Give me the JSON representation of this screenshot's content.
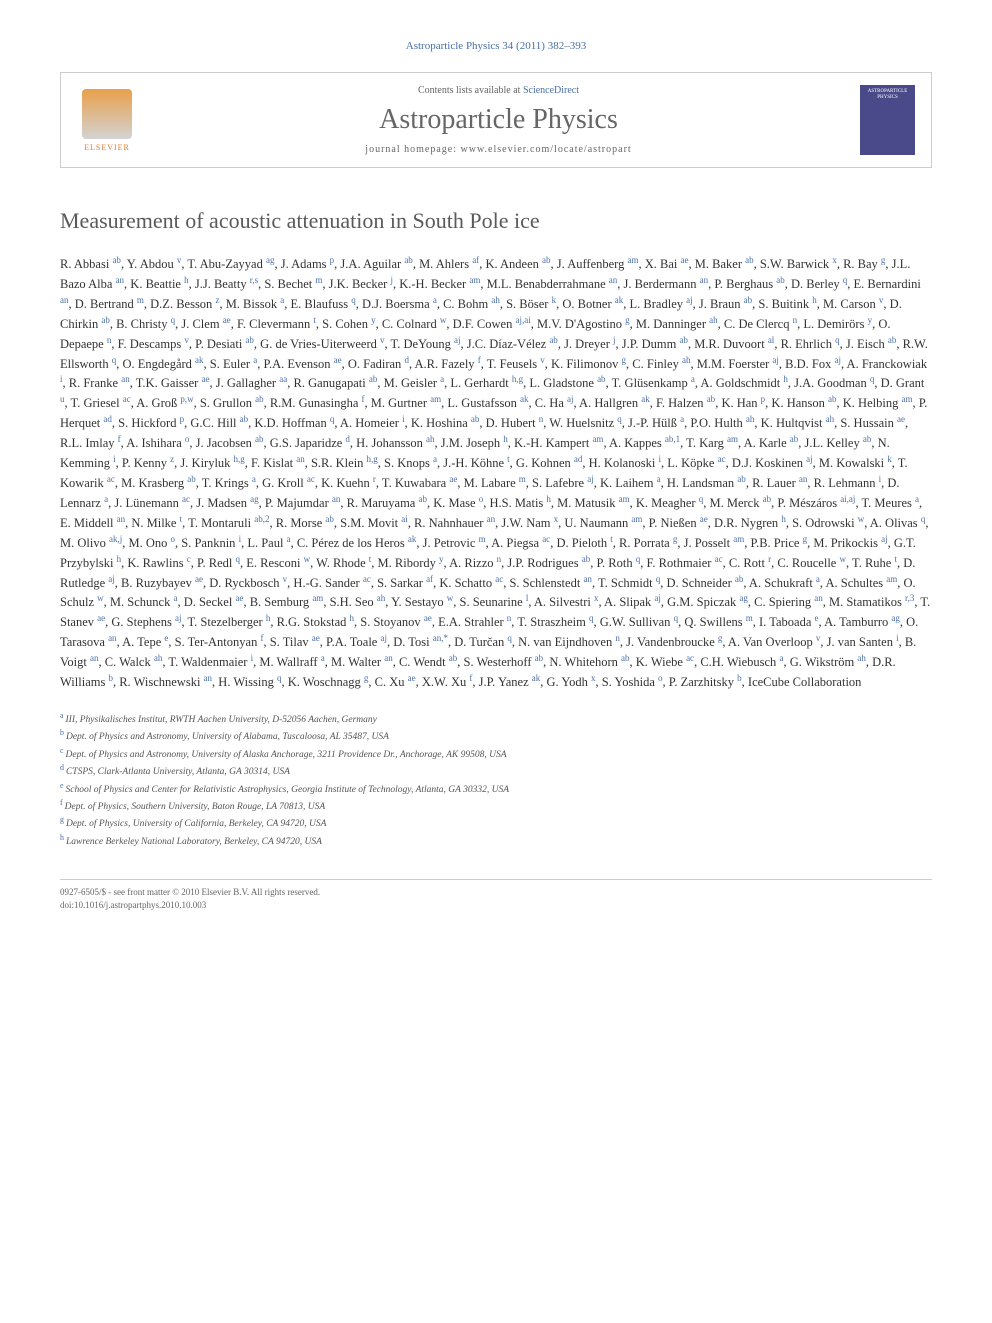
{
  "journal_reference": "Astroparticle Physics 34 (2011) 382–393",
  "header": {
    "contents_text": "Contents lists available at ",
    "contents_link": "ScienceDirect",
    "journal_name": "Astroparticle Physics",
    "homepage_label": "journal homepage: ",
    "homepage_url": "www.elsevier.com/locate/astropart",
    "publisher": "ELSEVIER",
    "cover_label": "ASTROPARTICLE PHYSICS"
  },
  "article_title": "Measurement of acoustic attenuation in South Pole ice",
  "authors_html": "R. Abbasi <sup>ab</sup>, Y. Abdou <sup>v</sup>, T. Abu-Zayyad <sup>ag</sup>, J. Adams <sup>p</sup>, J.A. Aguilar <sup>ab</sup>, M. Ahlers <sup>af</sup>, K. Andeen <sup>ab</sup>, J. Auffenberg <sup>am</sup>, X. Bai <sup>ae</sup>, M. Baker <sup>ab</sup>, S.W. Barwick <sup>x</sup>, R. Bay <sup>g</sup>, J.L. Bazo Alba <sup>an</sup>, K. Beattie <sup>h</sup>, J.J. Beatty <sup>r,s</sup>, S. Bechet <sup>m</sup>, J.K. Becker <sup>j</sup>, K.-H. Becker <sup>am</sup>, M.L. Benabderrahmane <sup>an</sup>, J. Berdermann <sup>an</sup>, P. Berghaus <sup>ab</sup>, D. Berley <sup>q</sup>, E. Bernardini <sup>an</sup>, D. Bertrand <sup>m</sup>, D.Z. Besson <sup>z</sup>, M. Bissok <sup>a</sup>, E. Blaufuss <sup>q</sup>, D.J. Boersma <sup>a</sup>, C. Bohm <sup>ah</sup>, S. Böser <sup>k</sup>, O. Botner <sup>ak</sup>, L. Bradley <sup>aj</sup>, J. Braun <sup>ab</sup>, S. Buitink <sup>h</sup>, M. Carson <sup>v</sup>, D. Chirkin <sup>ab</sup>, B. Christy <sup>q</sup>, J. Clem <sup>ae</sup>, F. Clevermann <sup>t</sup>, S. Cohen <sup>y</sup>, C. Colnard <sup>w</sup>, D.F. Cowen <sup>aj,ai</sup>, M.V. D'Agostino <sup>g</sup>, M. Danninger <sup>ah</sup>, C. De Clercq <sup>n</sup>, L. Demirörs <sup>y</sup>, O. Depaepe <sup>n</sup>, F. Descamps <sup>v</sup>, P. Desiati <sup>ab</sup>, G. de Vries-Uiterweerd <sup>v</sup>, T. DeYoung <sup>aj</sup>, J.C. Díaz-Vélez <sup>ab</sup>, J. Dreyer <sup>j</sup>, J.P. Dumm <sup>ab</sup>, M.R. Duvoort <sup>al</sup>, R. Ehrlich <sup>q</sup>, J. Eisch <sup>ab</sup>, R.W. Ellsworth <sup>q</sup>, O. Engdegård <sup>ak</sup>, S. Euler <sup>a</sup>, P.A. Evenson <sup>ae</sup>, O. Fadiran <sup>d</sup>, A.R. Fazely <sup>f</sup>, T. Feusels <sup>v</sup>, K. Filimonov <sup>g</sup>, C. Finley <sup>ah</sup>, M.M. Foerster <sup>aj</sup>, B.D. Fox <sup>aj</sup>, A. Franckowiak <sup>i</sup>, R. Franke <sup>an</sup>, T.K. Gaisser <sup>ae</sup>, J. Gallagher <sup>aa</sup>, R. Ganugapati <sup>ab</sup>, M. Geisler <sup>a</sup>, L. Gerhardt <sup>h,g</sup>, L. Gladstone <sup>ab</sup>, T. Glüsenkamp <sup>a</sup>, A. Goldschmidt <sup>h</sup>, J.A. Goodman <sup>q</sup>, D. Grant <sup>u</sup>, T. Griesel <sup>ac</sup>, A. Groß <sup>p,w</sup>, S. Grullon <sup>ab</sup>, R.M. Gunasingha <sup>f</sup>, M. Gurtner <sup>am</sup>, L. Gustafsson <sup>ak</sup>, C. Ha <sup>aj</sup>, A. Hallgren <sup>ak</sup>, F. Halzen <sup>ab</sup>, K. Han <sup>p</sup>, K. Hanson <sup>ab</sup>, K. Helbing <sup>am</sup>, P. Herquet <sup>ad</sup>, S. Hickford <sup>p</sup>, G.C. Hill <sup>ab</sup>, K.D. Hoffman <sup>q</sup>, A. Homeier <sup>i</sup>, K. Hoshina <sup>ab</sup>, D. Hubert <sup>n</sup>, W. Huelsnitz <sup>q</sup>, J.-P. Hülß <sup>a</sup>, P.O. Hulth <sup>ah</sup>, K. Hultqvist <sup>ah</sup>, S. Hussain <sup>ae</sup>, R.L. Imlay <sup>f</sup>, A. Ishihara <sup>o</sup>, J. Jacobsen <sup>ab</sup>, G.S. Japaridze <sup>d</sup>, H. Johansson <sup>ah</sup>, J.M. Joseph <sup>h</sup>, K.-H. Kampert <sup>am</sup>, A. Kappes <sup>ab,1</sup>, T. Karg <sup>am</sup>, A. Karle <sup>ab</sup>, J.L. Kelley <sup>ab</sup>, N. Kemming <sup>i</sup>, P. Kenny <sup>z</sup>, J. Kiryluk <sup>h,g</sup>, F. Kislat <sup>an</sup>, S.R. Klein <sup>h,g</sup>, S. Knops <sup>a</sup>, J.-H. Köhne <sup>t</sup>, G. Kohnen <sup>ad</sup>, H. Kolanoski <sup>i</sup>, L. Köpke <sup>ac</sup>, D.J. Koskinen <sup>aj</sup>, M. Kowalski <sup>k</sup>, T. Kowarik <sup>ac</sup>, M. Krasberg <sup>ab</sup>, T. Krings <sup>a</sup>, G. Kroll <sup>ac</sup>, K. Kuehn <sup>r</sup>, T. Kuwabara <sup>ae</sup>, M. Labare <sup>m</sup>, S. Lafebre <sup>aj</sup>, K. Laihem <sup>a</sup>, H. Landsman <sup>ab</sup>, R. Lauer <sup>an</sup>, R. Lehmann <sup>i</sup>, D. Lennarz <sup>a</sup>, J. Lünemann <sup>ac</sup>, J. Madsen <sup>ag</sup>, P. Majumdar <sup>an</sup>, R. Maruyama <sup>ab</sup>, K. Mase <sup>o</sup>, H.S. Matis <sup>h</sup>, M. Matusik <sup>am</sup>, K. Meagher <sup>q</sup>, M. Merck <sup>ab</sup>, P. Mészáros <sup>ai,aj</sup>, T. Meures <sup>a</sup>, E. Middell <sup>an</sup>, N. Milke <sup>t</sup>, T. Montaruli <sup>ab,2</sup>, R. Morse <sup>ab</sup>, S.M. Movit <sup>ai</sup>, R. Nahnhauer <sup>an</sup>, J.W. Nam <sup>x</sup>, U. Naumann <sup>am</sup>, P. Nießen <sup>ae</sup>, D.R. Nygren <sup>h</sup>, S. Odrowski <sup>w</sup>, A. Olivas <sup>q</sup>, M. Olivo <sup>ak,j</sup>, M. Ono <sup>o</sup>, S. Panknin <sup>i</sup>, L. Paul <sup>a</sup>, C. Pérez de los Heros <sup>ak</sup>, J. Petrovic <sup>m</sup>, A. Piegsa <sup>ac</sup>, D. Pieloth <sup>t</sup>, R. Porrata <sup>g</sup>, J. Posselt <sup>am</sup>, P.B. Price <sup>g</sup>, M. Prikockis <sup>aj</sup>, G.T. Przybylski <sup>h</sup>, K. Rawlins <sup>c</sup>, P. Redl <sup>q</sup>, E. Resconi <sup>w</sup>, W. Rhode <sup>t</sup>, M. Ribordy <sup>y</sup>, A. Rizzo <sup>n</sup>, J.P. Rodrigues <sup>ab</sup>, P. Roth <sup>q</sup>, F. Rothmaier <sup>ac</sup>, C. Rott <sup>r</sup>, C. Roucelle <sup>w</sup>, T. Ruhe <sup>t</sup>, D. Rutledge <sup>aj</sup>, B. Ruzybayev <sup>ae</sup>, D. Ryckbosch <sup>v</sup>, H.-G. Sander <sup>ac</sup>, S. Sarkar <sup>af</sup>, K. Schatto <sup>ac</sup>, S. Schlenstedt <sup>an</sup>, T. Schmidt <sup>q</sup>, D. Schneider <sup>ab</sup>, A. Schukraft <sup>a</sup>, A. Schultes <sup>am</sup>, O. Schulz <sup>w</sup>, M. Schunck <sup>a</sup>, D. Seckel <sup>ae</sup>, B. Semburg <sup>am</sup>, S.H. Seo <sup>ah</sup>, Y. Sestayo <sup>w</sup>, S. Seunarine <sup>l</sup>, A. Silvestri <sup>x</sup>, A. Slipak <sup>aj</sup>, G.M. Spiczak <sup>ag</sup>, C. Spiering <sup>an</sup>, M. Stamatikos <sup>r,3</sup>, T. Stanev <sup>ae</sup>, G. Stephens <sup>aj</sup>, T. Stezelberger <sup>h</sup>, R.G. Stokstad <sup>h</sup>, S. Stoyanov <sup>ae</sup>, E.A. Strahler <sup>n</sup>, T. Straszheim <sup>q</sup>, G.W. Sullivan <sup>q</sup>, Q. Swillens <sup>m</sup>, I. Taboada <sup>e</sup>, A. Tamburro <sup>ag</sup>, O. Tarasova <sup>an</sup>, A. Tepe <sup>e</sup>, S. Ter-Antonyan <sup>f</sup>, S. Tilav <sup>ae</sup>, P.A. Toale <sup>aj</sup>, D. Tosi <sup>an,*</sup>, D. Turčan <sup>q</sup>, N. van Eijndhoven <sup>n</sup>, J. Vandenbroucke <sup>g</sup>, A. Van Overloop <sup>v</sup>, J. van Santen <sup>i</sup>, B. Voigt <sup>an</sup>, C. Walck <sup>ah</sup>, T. Waldenmaier <sup>i</sup>, M. Wallraff <sup>a</sup>, M. Walter <sup>an</sup>, C. Wendt <sup>ab</sup>, S. Westerhoff <sup>ab</sup>, N. Whitehorn <sup>ab</sup>, K. Wiebe <sup>ac</sup>, C.H. Wiebusch <sup>a</sup>, G. Wikström <sup>ah</sup>, D.R. Williams <sup>b</sup>, R. Wischnewski <sup>an</sup>, H. Wissing <sup>q</sup>, K. Woschnagg <sup>g</sup>, C. Xu <sup>ae</sup>, X.W. Xu <sup>f</sup>, J.P. Yanez <sup>ak</sup>, G. Yodh <sup>x</sup>, S. Yoshida <sup>o</sup>, P. Zarzhitsky <sup>b</sup>, IceCube Collaboration",
  "affiliations": [
    {
      "key": "a",
      "text": "III, Physikalisches Institut, RWTH Aachen University, D-52056 Aachen, Germany"
    },
    {
      "key": "b",
      "text": "Dept. of Physics and Astronomy, University of Alabama, Tuscaloosa, AL 35487, USA"
    },
    {
      "key": "c",
      "text": "Dept. of Physics and Astronomy, University of Alaska Anchorage, 3211 Providence Dr., Anchorage, AK 99508, USA"
    },
    {
      "key": "d",
      "text": "CTSPS, Clark-Atlanta University, Atlanta, GA 30314, USA"
    },
    {
      "key": "e",
      "text": "School of Physics and Center for Relativistic Astrophysics, Georgia Institute of Technology, Atlanta, GA 30332, USA"
    },
    {
      "key": "f",
      "text": "Dept. of Physics, Southern University, Baton Rouge, LA 70813, USA"
    },
    {
      "key": "g",
      "text": "Dept. of Physics, University of California, Berkeley, CA 94720, USA"
    },
    {
      "key": "h",
      "text": "Lawrence Berkeley National Laboratory, Berkeley, CA 94720, USA"
    }
  ],
  "footer": {
    "issn_line": "0927-6505/$ - see front matter © 2010 Elsevier B.V. All rights reserved.",
    "doi_line": "doi:10.1016/j.astropartphys.2010.10.003"
  },
  "colors": {
    "link": "#4a6fa5",
    "text": "#333333",
    "heading": "#5a5a5a",
    "border": "#cccccc",
    "elsevier_orange": "#e07b2e"
  }
}
